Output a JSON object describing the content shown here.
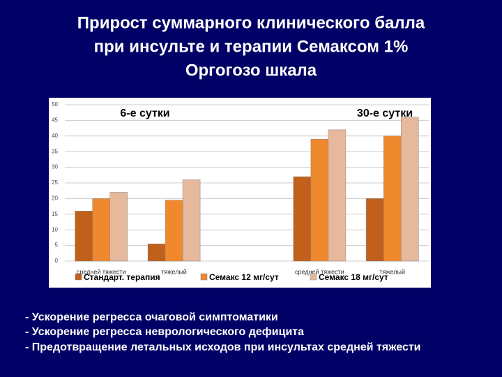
{
  "chart_data": {
    "type": "bar",
    "title": [
      "Прирост суммарного клинического балла",
      "при инсульте и терапии Семаксом 1%",
      "Оргогозо шкала"
    ],
    "annotations": [
      "6-е сутки",
      "30-е сутки"
    ],
    "categories": [
      "средней тяжести",
      "тяжелый",
      null,
      "средней тяжести",
      "тяжелый"
    ],
    "series": [
      {
        "name": "Стандарт. терапия",
        "color": "#c0601a",
        "values": [
          16,
          5.5,
          null,
          27,
          20
        ]
      },
      {
        "name": "Семакс 12 мг/сут",
        "color": "#f0892e",
        "values": [
          20,
          19.5,
          null,
          39,
          40
        ]
      },
      {
        "name": "Семакс 18 мг/сут",
        "color": "#e6b89c",
        "values": [
          22,
          26,
          null,
          42,
          46
        ]
      }
    ],
    "ylim": [
      0,
      50
    ],
    "yticks": [
      0,
      5,
      10,
      15,
      20,
      25,
      30,
      35,
      40,
      45,
      50
    ],
    "grid": true
  },
  "bullets": [
    "- Ускорение регресса очаговой симптоматики",
    "- Ускорение регресса неврологического дефицита",
    "- Предотвращение летальных исходов при инсультах средней тяжести"
  ]
}
